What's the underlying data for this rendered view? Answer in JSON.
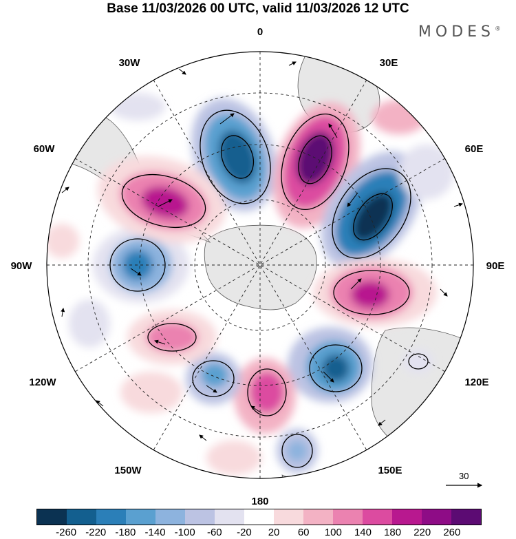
{
  "title": "Base 11/03/2026 00 UTC, valid 11/03/2026 12 UTC",
  "brand": "MODES",
  "brand_mark": "®",
  "map_labels": {
    "lon_0": "0",
    "lon_30e": "30E",
    "lon_60e": "60E",
    "lon_90e": "90E",
    "lon_120e": "120E",
    "lon_150e": "150E",
    "lon_180": "180",
    "lon_150w": "150W",
    "lon_120w": "120W",
    "lon_90w": "90W",
    "lon_60w": "60W",
    "lon_30w": "30W"
  },
  "vector_scale": "30",
  "colorbar": {
    "colors": [
      "#0b3252",
      "#135f8f",
      "#2b7fb8",
      "#5aa0d0",
      "#8db3de",
      "#bcc3e3",
      "#e3e2f0",
      "#ffffff",
      "#f8dadd",
      "#f3b2c4",
      "#eb82b0",
      "#dc4ba0",
      "#b8188f",
      "#8e0c86",
      "#5c0b73"
    ],
    "ticks": [
      "-260",
      "-220",
      "-180",
      "-140",
      "-100",
      "-60",
      "-20",
      "20",
      "60",
      "100",
      "140",
      "180",
      "220",
      "260"
    ]
  },
  "anomalies": [
    {
      "name": "anomaly-negative-0E",
      "value": -220
    },
    {
      "name": "anomaly-positive-30E",
      "value": 260
    },
    {
      "name": "anomaly-negative-60E",
      "value": -220
    },
    {
      "name": "anomaly-positive-100E",
      "value": 180
    },
    {
      "name": "anomaly-negative-135E",
      "value": -180
    },
    {
      "name": "anomaly-negative-125E-small",
      "value": -60
    },
    {
      "name": "anomaly-negative-160E",
      "value": -60
    },
    {
      "name": "anomaly-positive-170W",
      "value": 140
    },
    {
      "name": "anomaly-negative-145W",
      "value": -100
    },
    {
      "name": "anomaly-positive-120W",
      "value": 140
    },
    {
      "name": "anomaly-negative-90W",
      "value": -140
    },
    {
      "name": "anomaly-positive-55W",
      "value": 180
    }
  ]
}
